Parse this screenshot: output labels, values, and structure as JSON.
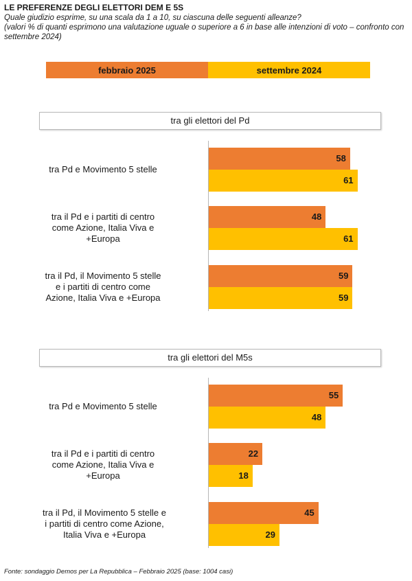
{
  "header": {
    "title": "LE PREFERENZE DEGLI ELETTORI DEM E 5S",
    "subtitle_line1": "Quale giudizio esprime, su una scala da 1 a 10, su ciascuna delle seguenti alleanze?",
    "subtitle_line2": "(valori % di quanti esprimono una valutazione uguale o superiore a 6 in base alle intenzioni di voto – confronto con settembre 2024)"
  },
  "footer": "Fonte: sondaggio Demos per La Repubblica – Febbraio 2025 (base: 1004 casi)",
  "colors": {
    "febbraio_2025": "#ED7D31",
    "settembre_2024": "#FFC000"
  },
  "chart_data": {
    "type": "bar",
    "orientation": "horizontal",
    "legend": [
      "febbraio 2025",
      "settembre 2024"
    ],
    "panels": [
      {
        "title": "tra gli elettori del Pd",
        "categories": [
          "tra Pd e Movimento 5 stelle",
          "tra il Pd e i partiti di centro come Azione, Italia Viva e +Europa",
          "tra il Pd, il Movimento 5 stelle e i partiti di centro come Azione, Italia Viva e +Europa"
        ],
        "label_lines": [
          [
            "tra Pd e Movimento 5 stelle"
          ],
          [
            "tra il Pd e i partiti di centro",
            "come Azione, Italia Viva e",
            "+Europa"
          ],
          [
            "tra il Pd, il Movimento 5 stelle",
            "e i partiti di centro come",
            "Azione, Italia Viva e +Europa"
          ]
        ],
        "series": [
          {
            "name": "febbraio 2025",
            "values": [
              58,
              48,
              59
            ]
          },
          {
            "name": "settembre 2024",
            "values": [
              61,
              61,
              59
            ]
          }
        ]
      },
      {
        "title": "tra gli elettori del M5s",
        "categories": [
          "tra Pd e Movimento 5 stelle",
          "tra il Pd e i partiti di centro come Azione, Italia Viva e +Europa",
          "tra il Pd, il Movimento 5 stelle e i partiti di centro come Azione, Italia Viva e +Europa"
        ],
        "label_lines": [
          [
            "tra Pd e Movimento 5 stelle"
          ],
          [
            "tra il Pd e i partiti di centro",
            "come Azione, Italia Viva e",
            "+Europa"
          ],
          [
            "tra il Pd, il Movimento 5 stelle e",
            "i partiti di centro come Azione,",
            "Italia Viva e +Europa"
          ]
        ],
        "series": [
          {
            "name": "febbraio 2025",
            "values": [
              55,
              22,
              45
            ]
          },
          {
            "name": "settembre 2024",
            "values": [
              48,
              18,
              29
            ]
          }
        ]
      }
    ]
  }
}
